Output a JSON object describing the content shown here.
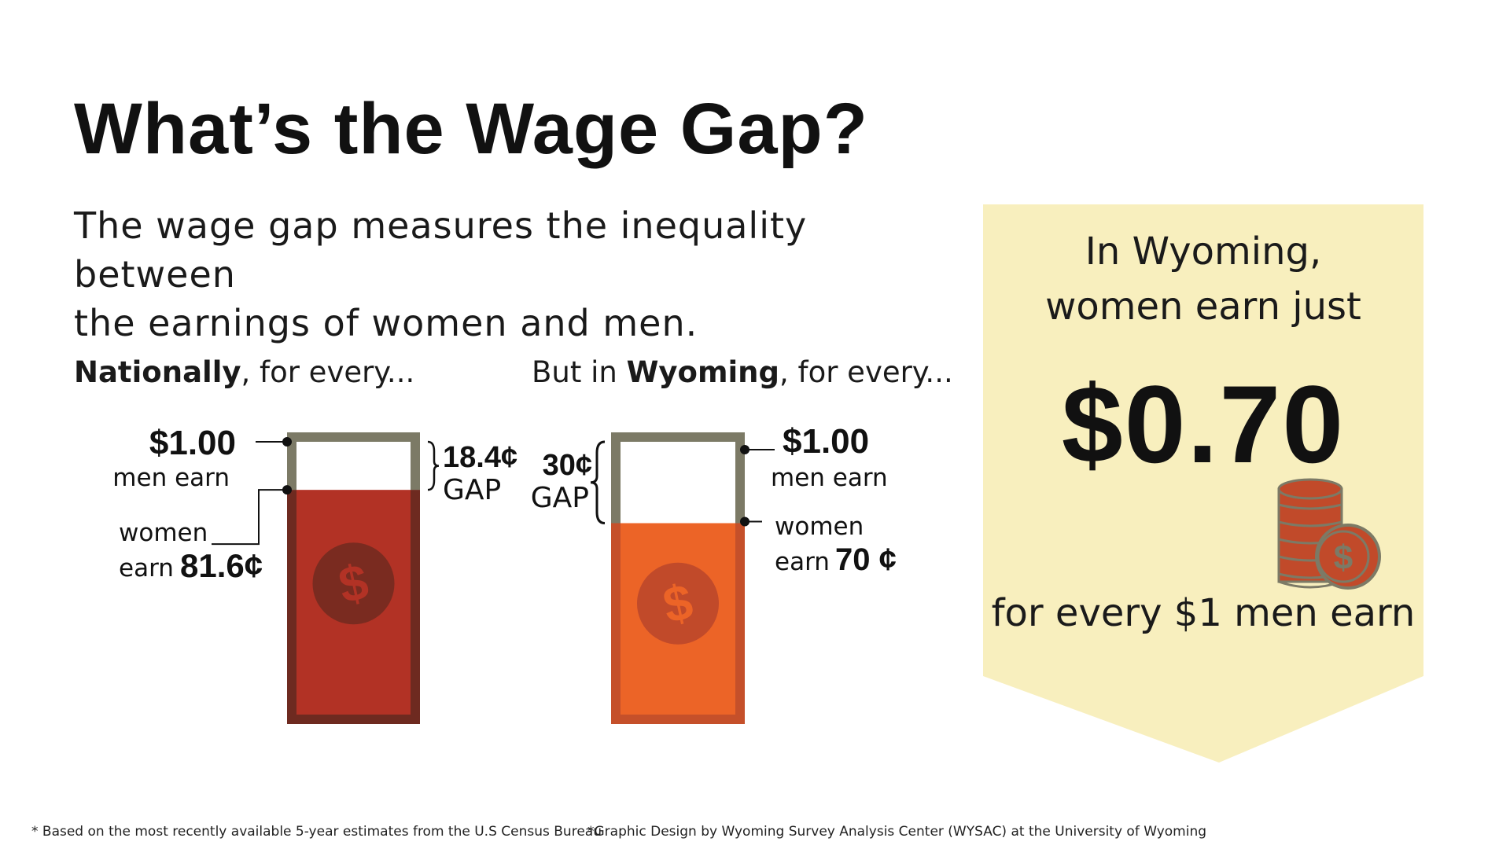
{
  "header": {
    "title": "What’s the Wage Gap?",
    "subtitle_line1": "The wage gap measures the inequality between",
    "subtitle_line2": "the earnings of women and men."
  },
  "national": {
    "label_bold": "Nationally",
    "label_rest": ", for every...",
    "men_amount": "$1.00",
    "men_text": "men earn",
    "women_text": "women",
    "women_earn_text": "earn",
    "women_amount": "81.6¢",
    "gap_amount": "18.4¢",
    "gap_text": "GAP",
    "fill_color": "#b23225",
    "border_color": "#6e2a20",
    "coin_color": "#7a2b20",
    "symbol_color": "#b23225"
  },
  "wyoming": {
    "label_prefix": "But in ",
    "label_bold": "Wyoming",
    "label_rest": ", for every...",
    "men_amount": "$1.00",
    "men_text": "men earn",
    "women_text": "women",
    "women_earn_text": "earn",
    "women_amount": "70 ¢",
    "gap_amount": "30¢",
    "gap_text": "GAP",
    "fill_color": "#ec6427",
    "border_color": "#c5502a",
    "coin_color": "#c14a2a",
    "symbol_color": "#ec6427"
  },
  "callout": {
    "line1": "In Wyoming,",
    "line2": "women earn just",
    "value": "$0.70",
    "line3": "for every $1 men earn",
    "background": "#f8efbe",
    "coin_icon": "coin-stack-icon",
    "coin_color": "#c14a2a",
    "coin_edge": "#7c7a66"
  },
  "frame_color": "#7c7a66",
  "chart_data": {
    "type": "bar",
    "title": "What’s the Wage Gap?",
    "categories": [
      "Nationally",
      "Wyoming"
    ],
    "unit": "cents per $1.00 men earn",
    "ylim": [
      0,
      100
    ],
    "series": [
      {
        "name": "women earn",
        "values": [
          81.6,
          70
        ]
      },
      {
        "name": "GAP",
        "values": [
          18.4,
          30
        ]
      }
    ]
  },
  "footnotes": {
    "note1": "* Based on the most recently available 5-year estimates from the U.S Census Bureau",
    "note2": "*Graphic Design by Wyoming Survey Analysis Center (WYSAC) at the University of Wyoming"
  }
}
